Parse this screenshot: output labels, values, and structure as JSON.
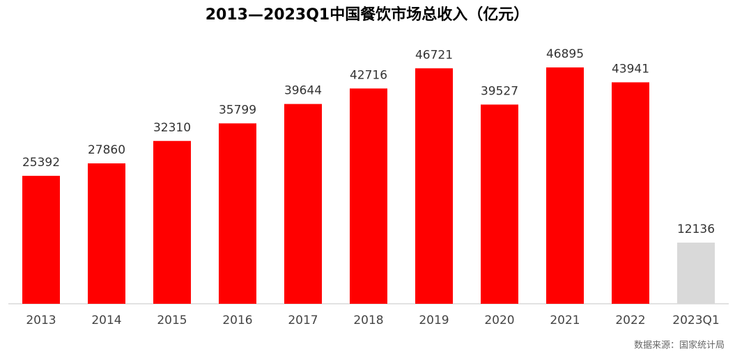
{
  "chart_data": {
    "type": "bar",
    "title": "2013—2023Q1中国餐饮市场总收入（亿元）",
    "categories": [
      "2013",
      "2014",
      "2015",
      "2016",
      "2017",
      "2018",
      "2019",
      "2020",
      "2021",
      "2022",
      "2023Q1"
    ],
    "values": [
      25392,
      27860,
      32310,
      35799,
      39644,
      42716,
      46721,
      39527,
      46895,
      43941,
      12136
    ],
    "colors": [
      "#ff0000",
      "#ff0000",
      "#ff0000",
      "#ff0000",
      "#ff0000",
      "#ff0000",
      "#ff0000",
      "#ff0000",
      "#ff0000",
      "#ff0000",
      "#d9d9d9"
    ],
    "ylim": [
      0,
      50000
    ],
    "source": "数据来源：国家统计局"
  }
}
